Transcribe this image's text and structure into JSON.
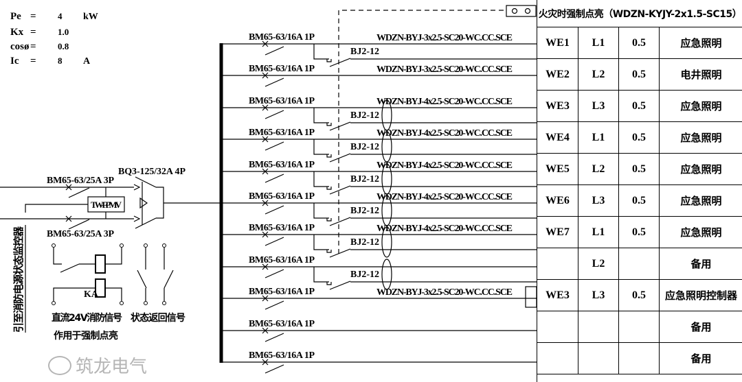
{
  "params": [
    {
      "name": "Pe",
      "eq": "=",
      "value": "4",
      "unit": "kW"
    },
    {
      "name": "Kx",
      "eq": "=",
      "value": "1.0",
      "unit": ""
    },
    {
      "name": "cosø",
      "eq": "=",
      "value": "0.8",
      "unit": ""
    },
    {
      "name": "Ic",
      "eq": "=",
      "value": "8",
      "unit": "A"
    }
  ],
  "incoming": {
    "breaker_top": "BM65-63/25A 3P",
    "breaker_bottom": "BM65-63/25A 3P",
    "ats": "BQ3-125/32A 4P",
    "monitor_module": "TW-FPMV",
    "relay": "KA",
    "signal_label_1": "直流24V消防信号",
    "signal_label_2": "作用于强制点亮",
    "status_label": "状态返回信号",
    "monitor_note": "引至消防电源状态监控器"
  },
  "branches": [
    {
      "breaker": "BM65-63/16A 1P",
      "cable": "WDZN-BYJ-3x2.5-SC20-WC.CC.SCE",
      "contactor": "BJ2-12"
    },
    {
      "breaker": "BM65-63/16A 1P",
      "cable": "WDZN-BYJ-3x2.5-SC20-WC.CC.SCE",
      "contactor": ""
    },
    {
      "breaker": "BM65-63/16A 1P",
      "cable": "WDZN-BYJ-4x2.5-SC20-WC.CC.SCE",
      "contactor": "BJ2-12"
    },
    {
      "breaker": "BM65-63/16A 1P",
      "cable": "WDZN-BYJ-4x2.5-SC20-WC.CC.SCE",
      "contactor": "BJ2-12"
    },
    {
      "breaker": "BM65-63/16A 1P",
      "cable": "WDZN-BYJ-4x2.5-SC20-WC.CC.SCE",
      "contactor": "BJ2-12"
    },
    {
      "breaker": "BM65-63/16A 1P",
      "cable": "WDZN-BYJ-4x2.5-SC20-WC.CC.SCE",
      "contactor": "BJ2-12"
    },
    {
      "breaker": "BM65-63/16A 1P",
      "cable": "WDZN-BYJ-4x2.5-SC20-WC.CC.SCE",
      "contactor": "BJ2-12"
    },
    {
      "breaker": "BM65-63/16A 1P",
      "cable": "",
      "contactor": "BJ2-12"
    },
    {
      "breaker": "BM65-63/16A 1P",
      "cable": "WDZN-BYJ-3x2.5-SC20-WC.CC.SCE",
      "contactor": ""
    },
    {
      "breaker": "BM65-63/16A 1P",
      "cable": "",
      "contactor": ""
    },
    {
      "breaker": "BM65-63/16A 1P",
      "cable": "",
      "contactor": ""
    }
  ],
  "table": {
    "header": "火灾时强制点亮（WDZN-KYJY-2x1.5-SC15）",
    "rows": [
      [
        "WE1",
        "L1",
        "0.5",
        "应急照明"
      ],
      [
        "WE2",
        "L2",
        "0.5",
        "电井照明"
      ],
      [
        "WE3",
        "L3",
        "0.5",
        "应急照明"
      ],
      [
        "WE4",
        "L1",
        "0.5",
        "应急照明"
      ],
      [
        "WE5",
        "L2",
        "0.5",
        "应急照明"
      ],
      [
        "WE6",
        "L3",
        "0.5",
        "应急照明"
      ],
      [
        "WE7",
        "L1",
        "0.5",
        "应急照明"
      ],
      [
        "",
        "L2",
        "",
        "备用"
      ],
      [
        "WE3",
        "L3",
        "0.5",
        "应急照明控制器"
      ],
      [
        "",
        "",
        "",
        "备用"
      ],
      [
        "",
        "",
        "",
        "备用"
      ]
    ]
  },
  "watermark": "筑龙电气"
}
